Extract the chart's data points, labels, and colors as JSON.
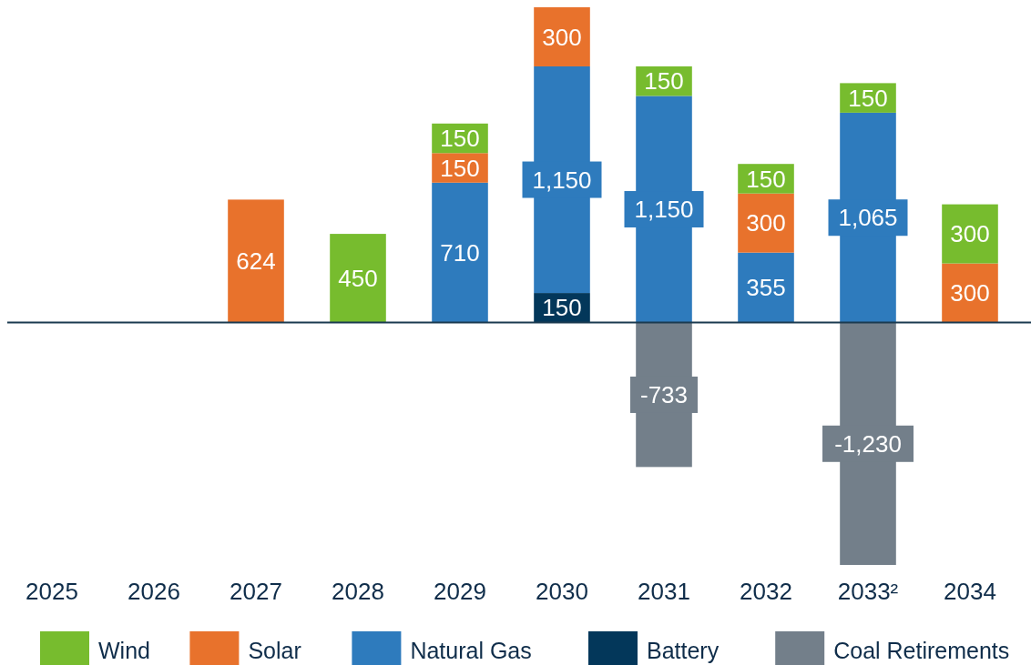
{
  "chart_data": {
    "type": "bar",
    "stacked": true,
    "legend": "bottom",
    "grid": false,
    "categories": [
      "2025",
      "2026",
      "2027",
      "2028",
      "2029",
      "2030",
      "2031",
      "2032",
      "2033²",
      "2034"
    ],
    "series": [
      {
        "name": "Battery",
        "color": "#03375a",
        "values": [
          null,
          null,
          null,
          null,
          null,
          150,
          null,
          null,
          null,
          null
        ],
        "value_labels": [
          null,
          null,
          null,
          null,
          null,
          "150",
          null,
          null,
          null,
          null
        ]
      },
      {
        "name": "Natural Gas",
        "color": "#2e7bbd",
        "values": [
          null,
          null,
          null,
          null,
          710,
          1150,
          1150,
          355,
          1065,
          null
        ],
        "value_labels": [
          null,
          null,
          null,
          null,
          "710",
          "1,150",
          "1,150",
          "355",
          "1,065",
          null
        ]
      },
      {
        "name": "Solar",
        "color": "#e8722c",
        "values": [
          null,
          null,
          624,
          null,
          150,
          300,
          null,
          300,
          null,
          300
        ],
        "value_labels": [
          null,
          null,
          "624",
          null,
          "150",
          "300",
          null,
          "300",
          null,
          "300"
        ]
      },
      {
        "name": "Wind",
        "color": "#77bc2e",
        "values": [
          null,
          null,
          null,
          450,
          150,
          null,
          150,
          150,
          150,
          300
        ],
        "value_labels": [
          null,
          null,
          null,
          "450",
          "150",
          null,
          "150",
          "150",
          "150",
          "300"
        ]
      },
      {
        "name": "Coal Retirements",
        "color": "#737f8a",
        "values": [
          null,
          null,
          null,
          null,
          null,
          null,
          -733,
          null,
          -1230,
          null
        ],
        "value_labels": [
          null,
          null,
          null,
          null,
          null,
          null,
          "-733",
          null,
          "-1,230",
          null
        ]
      }
    ]
  }
}
